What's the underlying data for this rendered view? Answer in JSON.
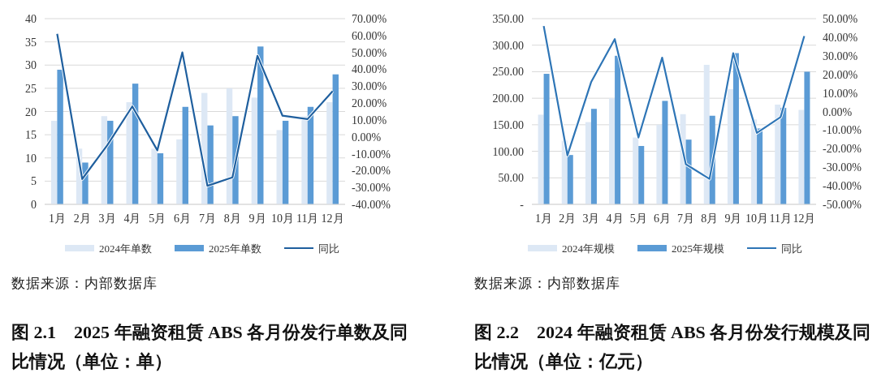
{
  "chart_data": [
    {
      "type": "bar",
      "title": "图 2.1　2025 年融资租赁 ABS 各月份发行单数及同比情况（单位：单）",
      "annotations": [
        "数据来源：内部数据库"
      ],
      "categories": [
        "1月",
        "2月",
        "3月",
        "4月",
        "5月",
        "6月",
        "7月",
        "8月",
        "9月",
        "10月",
        "11月",
        "12月"
      ],
      "series": [
        {
          "name": "2024年单数",
          "color": "#dde8f5",
          "values": [
            18,
            12,
            19,
            22,
            12,
            14,
            24,
            25,
            23,
            16,
            19,
            22
          ]
        },
        {
          "name": "2025年单数",
          "color": "#5b9bd5",
          "values": [
            29,
            9,
            18,
            26,
            11,
            21,
            17,
            19,
            34,
            18,
            21,
            28
          ]
        },
        {
          "name": "同比",
          "type": "line",
          "axis": "y2",
          "color": "#1f5f9e",
          "values": [
            61,
            -25,
            -5,
            18,
            -8,
            50,
            -29,
            -24,
            48,
            12.5,
            10.5,
            27
          ]
        }
      ],
      "ylim": [
        0,
        40
      ],
      "yticks": [
        0,
        5,
        10,
        15,
        20,
        25,
        30,
        35,
        40
      ],
      "y2lim": [
        -40,
        70
      ],
      "y2ticks": [
        {
          "value": 70,
          "label": "70.00%"
        },
        {
          "value": 60,
          "label": "60.00%"
        },
        {
          "value": 50,
          "label": "50.00%"
        },
        {
          "value": 40,
          "label": "40.00%"
        },
        {
          "value": 30,
          "label": "30.00%"
        },
        {
          "value": 20,
          "label": "20.00%"
        },
        {
          "value": 10,
          "label": "10.00%"
        },
        {
          "value": 0,
          "label": "0.00%"
        },
        {
          "value": -10,
          "label": "-10.00%"
        },
        {
          "value": -20,
          "label": "-20.00%"
        },
        {
          "value": -30,
          "label": "-30.00%"
        },
        {
          "value": -40,
          "label": "-40.00%"
        }
      ],
      "grid": "y",
      "legend": "bottom",
      "marker": "none",
      "line_style": "solid"
    },
    {
      "type": "bar",
      "title": "图 2.2　2024 年融资租赁 ABS 各月份发行规模及同比情况（单位：亿元）",
      "annotations": [
        "数据来源：内部数据库"
      ],
      "categories": [
        "1月",
        "2月",
        "3月",
        "4月",
        "5月",
        "6月",
        "7月",
        "8月",
        "9月",
        "10月",
        "11月",
        "12月"
      ],
      "series": [
        {
          "name": "2024年规模",
          "color": "#dde8f5",
          "values": [
            169,
            120,
            155,
            200,
            126,
            150,
            170,
            263,
            217,
            160,
            188,
            178
          ]
        },
        {
          "name": "2025年规模",
          "color": "#5b9bd5",
          "values": [
            246,
            93,
            180,
            280,
            110,
            195,
            122,
            167,
            285,
            143,
            182,
            250
          ]
        },
        {
          "name": "同比",
          "type": "line",
          "axis": "y2",
          "color": "#2e75b6",
          "values": [
            46,
            -23.6,
            15.8,
            39,
            -14,
            29,
            -28.4,
            -36.3,
            31.4,
            -11.5,
            -3,
            40.6
          ]
        }
      ],
      "ylim": [
        0,
        350
      ],
      "yticks": [
        {
          "value": 0,
          "label": "-"
        },
        {
          "value": 50,
          "label": "50.00"
        },
        {
          "value": 100,
          "label": "100.00"
        },
        {
          "value": 150,
          "label": "150.00"
        },
        {
          "value": 200,
          "label": "200.00"
        },
        {
          "value": 250,
          "label": "250.00"
        },
        {
          "value": 300,
          "label": "300.00"
        },
        {
          "value": 350,
          "label": "350.00"
        }
      ],
      "y2lim": [
        -50,
        50
      ],
      "y2ticks": [
        {
          "value": 50,
          "label": "50.00%"
        },
        {
          "value": 40,
          "label": "40.00%"
        },
        {
          "value": 30,
          "label": "30.00%"
        },
        {
          "value": 20,
          "label": "20.00%"
        },
        {
          "value": 10,
          "label": "10.00%"
        },
        {
          "value": 0,
          "label": "0.00%"
        },
        {
          "value": -10,
          "label": "-10.00%"
        },
        {
          "value": -20,
          "label": "-20.00%"
        },
        {
          "value": -30,
          "label": "-30.00%"
        },
        {
          "value": -40,
          "label": "-40.00%"
        },
        {
          "value": -50,
          "label": "-50.00%"
        }
      ],
      "grid": "y",
      "legend": "bottom",
      "marker": "none",
      "line_style": "solid"
    }
  ]
}
